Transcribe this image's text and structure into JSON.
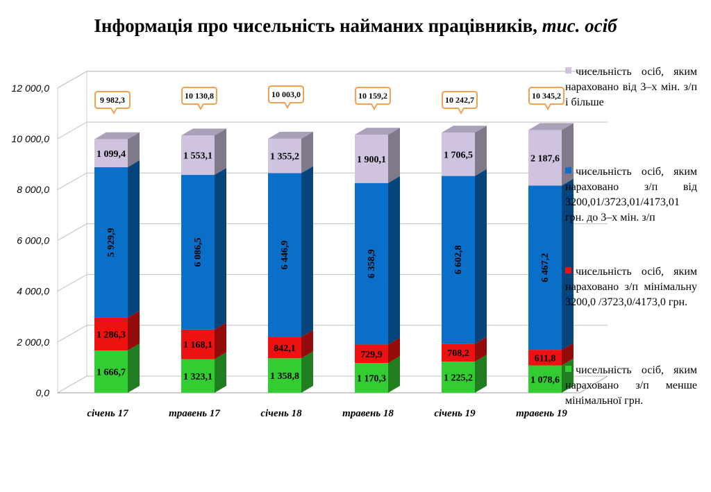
{
  "title": {
    "main": "Інформація про чисельність найманих працівників,",
    "unit": "тис. осіб"
  },
  "colors": {
    "green": "#33cc33",
    "red": "#ee1111",
    "blue": "#0a6fc8",
    "lilac": "#cfc3df",
    "callout_border": "#f0a050"
  },
  "legend": [
    {
      "text": "чисельність осіб, яким нараховано від 3–х мін. з/п і більше",
      "color": "#cfc3df"
    },
    {
      "text": "чисельність осіб, яким нараховано з/п від 3200,01/3723,01/4173,01 грн. до 3–х мін. з/п",
      "color": "#0a6fc8"
    },
    {
      "text": "чисельність осіб, яким нараховано з/п мінімальну 3200,0 /3723,0/4173,0 грн.",
      "color": "#ee1111"
    },
    {
      "text": "чисельність осіб, яким нараховано з/п менше мінімальної грн.",
      "color": "#33cc33"
    }
  ],
  "chart_data": {
    "type": "bar",
    "stacked": true,
    "categories": [
      "січень 17",
      "травень 17",
      "січень 18",
      "травень 18",
      "січень 19",
      "травень 19"
    ],
    "series": [
      {
        "name": "чисельність осіб, яким нараховано з/п менше мінімальної грн.",
        "values": [
          1666.7,
          1323.1,
          1358.8,
          1170.3,
          1225.2,
          1078.6
        ],
        "labels": [
          "1 666,7",
          "1 323,1",
          "1 358,8",
          "1 170,3",
          "1 225,2",
          "1 078,6"
        ]
      },
      {
        "name": "чисельність осіб, яким нараховано з/п мінімальну 3200,0 /3723,0/4173,0 грн.",
        "values": [
          1286.3,
          1168.1,
          842.1,
          729.9,
          708.2,
          611.8
        ],
        "labels": [
          "1 286,3",
          "1 168,1",
          "842,1",
          "729,9",
          "708,2",
          "611,8"
        ]
      },
      {
        "name": "чисельність осіб, яким нараховано з/п від 3200,01/3723,01/4173,01 грн. до 3–х мін. з/п",
        "values": [
          5929.9,
          6086.5,
          6446.9,
          6358.9,
          6602.8,
          6467.2
        ],
        "labels": [
          "5 929,9",
          "6 086,5",
          "6 446,9",
          "6 358,9",
          "6 602,8",
          "6 467,2"
        ]
      },
      {
        "name": "чисельність осіб, яким нараховано від 3–х мін. з/п і більше",
        "values": [
          1099.4,
          1553.1,
          1355.2,
          1900.1,
          1706.5,
          2187.6
        ],
        "labels": [
          "1 099,4",
          "1 553,1",
          "1 355,2",
          "1 900,1",
          "1 706,5",
          "2 187,6"
        ]
      }
    ],
    "totals": [
      9982.3,
      10130.8,
      10003.0,
      10159.2,
      10242.7,
      10345.2
    ],
    "total_labels": [
      "9 982,3",
      "10 130,8",
      "10 003,0",
      "10 159,2",
      "10 242,7",
      "10 345,2"
    ],
    "yticks": [
      0,
      2000,
      4000,
      6000,
      8000,
      10000,
      12000
    ],
    "ytick_labels": [
      "0,0",
      "2 000,0",
      "4 000,0",
      "6 000,0",
      "8 000,0",
      "10 000,0",
      "12 000,0"
    ],
    "ylim": [
      0,
      12000
    ],
    "grid": true,
    "legend_position": "right"
  }
}
